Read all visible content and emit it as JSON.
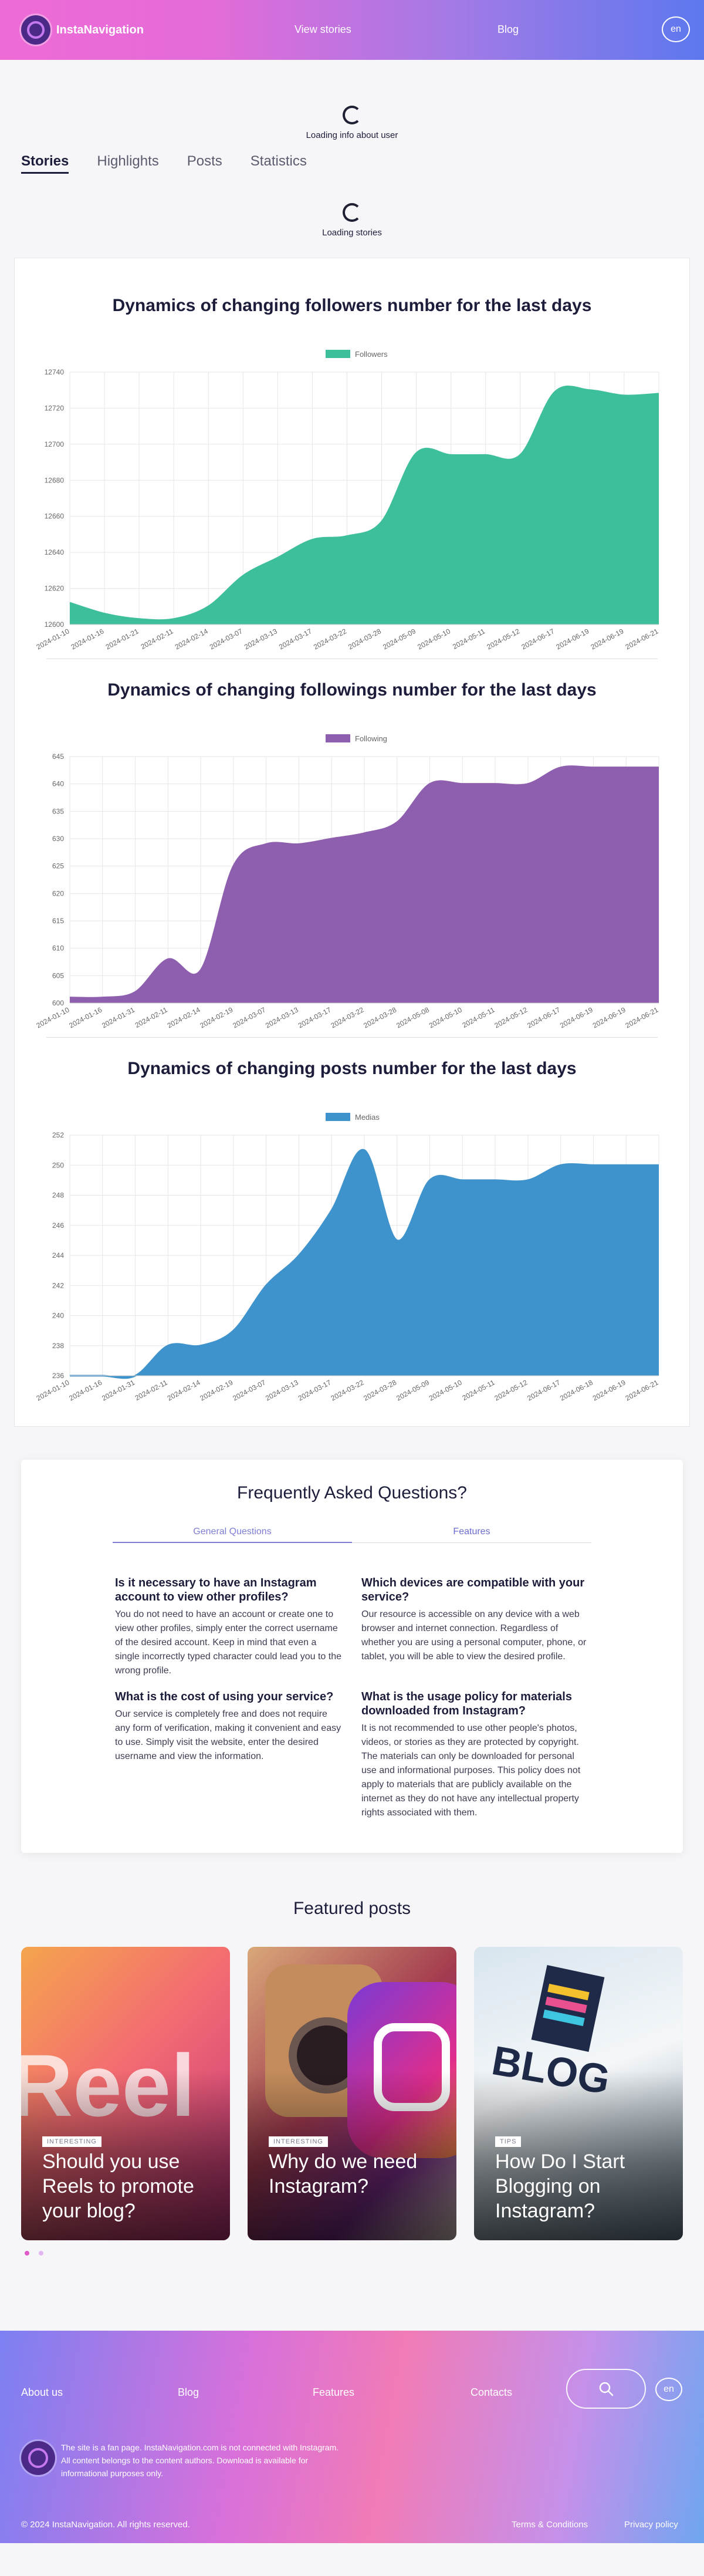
{
  "header": {
    "logo_text": "InstaNavigation",
    "nav_view_stories": "View stories",
    "nav_blog": "Blog",
    "lang": "en"
  },
  "loading_user_text": "Loading info about user",
  "tabs": [
    "Stories",
    "Highlights",
    "Posts",
    "Statistics"
  ],
  "loading_stories_text": "Loading stories",
  "colors": {
    "followers": "#3dbf9b",
    "followings": "#8e5fae",
    "posts": "#3f93cc",
    "accent": "#7d7dd6"
  },
  "charts": [
    {
      "title": "Dynamics of changing followers number for the last days",
      "legend": "Followers",
      "chart_data": {
        "type": "area",
        "x": [
          "2024-01-10",
          "2024-01-16",
          "2024-01-21",
          "2024-02-11",
          "2024-02-14",
          "2024-03-07",
          "2024-03-13",
          "2024-03-17",
          "2024-03-22",
          "2024-03-28",
          "2024-05-09",
          "2024-05-10",
          "2024-05-11",
          "2024-05-12",
          "2024-06-17",
          "2024-06-19",
          "2024-06-19",
          "2024-06-21"
        ],
        "values": [
          12612,
          12606,
          12603,
          12603,
          12610,
          12627,
          12637,
          12647,
          12649,
          12657,
          12695,
          12694,
          12694,
          12694,
          12729,
          12730,
          12727,
          12728
        ],
        "yticks": [
          12600,
          12620,
          12640,
          12660,
          12680,
          12700,
          12720,
          12740
        ],
        "ylim": [
          12600,
          12740
        ]
      }
    },
    {
      "title": "Dynamics of changing followings number for the last days",
      "legend": "Following",
      "chart_data": {
        "type": "area",
        "x": [
          "2024-01-10",
          "2024-01-16",
          "2024-01-31",
          "2024-02-11",
          "2024-02-14",
          "2024-02-19",
          "2024-03-07",
          "2024-03-13",
          "2024-03-17",
          "2024-03-22",
          "2024-03-28",
          "2024-05-08",
          "2024-05-10",
          "2024-05-11",
          "2024-05-12",
          "2024-06-17",
          "2024-06-19",
          "2024-06-19",
          "2024-06-21"
        ],
        "values": [
          601,
          601,
          602,
          608,
          606,
          625,
          629,
          629,
          630,
          631,
          633,
          640,
          640,
          640,
          640,
          643,
          643,
          643,
          643
        ],
        "yticks": [
          600,
          605,
          610,
          615,
          620,
          625,
          630,
          635,
          640,
          645
        ],
        "ylim": [
          600,
          645
        ]
      }
    },
    {
      "title": "Dynamics of changing posts number for the last days",
      "legend": "Medias",
      "chart_data": {
        "type": "area",
        "x": [
          "2024-01-10",
          "2024-01-16",
          "2024-01-31",
          "2024-02-11",
          "2024-02-14",
          "2024-02-19",
          "2024-03-07",
          "2024-03-13",
          "2024-03-17",
          "2024-03-22",
          "2024-03-28",
          "2024-05-09",
          "2024-05-10",
          "2024-05-11",
          "2024-05-12",
          "2024-06-17",
          "2024-06-18",
          "2024-06-19",
          "2024-06-21"
        ],
        "values": [
          236,
          236,
          236,
          238,
          238,
          239,
          242,
          244,
          247,
          251,
          245,
          249,
          249,
          249,
          249,
          250,
          250,
          250,
          250
        ],
        "yticks": [
          236,
          238,
          240,
          242,
          244,
          246,
          248,
          250,
          252
        ],
        "ylim": [
          236,
          252
        ]
      }
    }
  ],
  "faq": {
    "title": "Frequently Asked Questions?",
    "tabs": [
      "General Questions",
      "Features"
    ],
    "items": [
      {
        "q": "Is it necessary to have an Instagram account to view other profiles?",
        "a": "You do not need to have an account or create one to view other profiles, simply enter the correct username of the desired account. Keep in mind that even a single incorrectly typed character could lead you to the wrong profile."
      },
      {
        "q": "Which devices are compatible with your service?",
        "a": "Our resource is accessible on any device with a web browser and internet connection. Regardless of whether you are using a personal computer, phone, or tablet, you will be able to view the desired profile."
      },
      {
        "q": "What is the cost of using your service?",
        "a": "Our service is completely free and does not require any form of verification, making it convenient and easy to use. Simply visit the website, enter the desired username and view the information."
      },
      {
        "q": "What is the usage policy for materials downloaded from Instagram?",
        "a": "It is not recommended to use other people's photos, videos, or stories as they are protected by copyright. The materials can only be downloaded for personal use and informational purposes. This policy does not apply to materials that are publicly available on the internet as they do not have any intellectual property rights associated with them."
      }
    ]
  },
  "featured": {
    "title": "Featured posts",
    "cards": [
      {
        "tag": "INTERESTING",
        "title": "Should you use Reels to promote your blog?",
        "art_text": "Reel"
      },
      {
        "tag": "INTERESTING",
        "title": "Why do we need Instagram?"
      },
      {
        "tag": "TIPS",
        "title": "How Do I Start Blogging on Instagram?",
        "art_text": "BLOG"
      }
    ]
  },
  "footer": {
    "links": [
      "About us",
      "Blog",
      "Features",
      "Contacts"
    ],
    "lang": "en",
    "disclaimer": "The site is a fan page. InstaNavigation.com is not connected with Instagram. All content belongs to the content authors. Download is available for informational purposes only.",
    "copyright": "© 2024 InstaNavigation. All rights reserved.",
    "terms": "Terms & Conditions",
    "privacy": "Privacy policy"
  }
}
